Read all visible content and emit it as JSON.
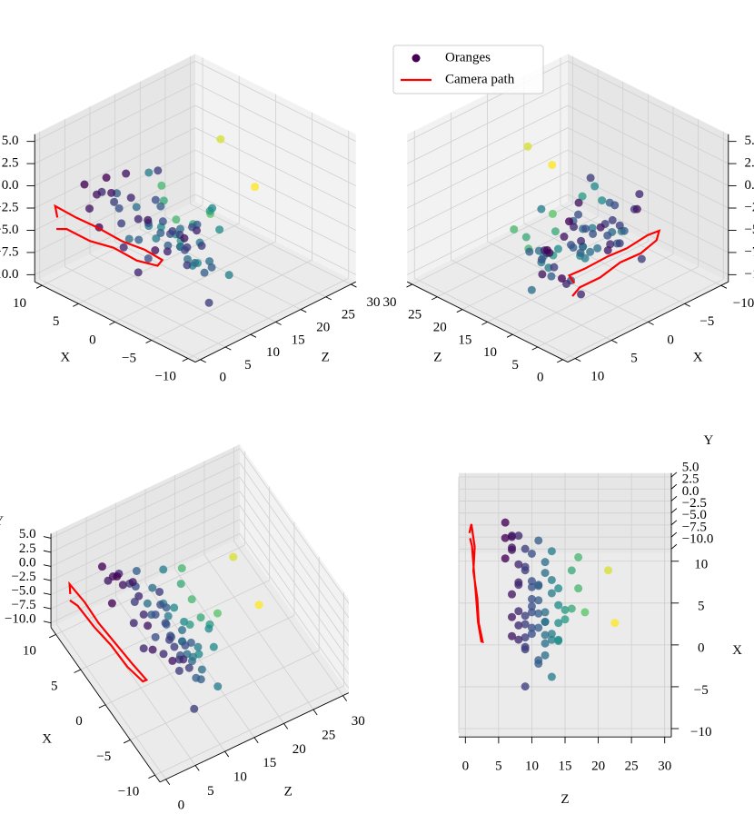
{
  "chart_data": {
    "type": "scatter3d",
    "xlabel": "X",
    "ylabel": "Y",
    "zlabel": "Z",
    "xlim": [
      -11,
      11
    ],
    "ylim": [
      -10.8,
      5.8
    ],
    "zlim": [
      -1,
      31
    ],
    "xticks": [
      {
        "value": -10,
        "label": "−10"
      },
      {
        "value": -5,
        "label": "−5"
      },
      0,
      5,
      10
    ],
    "yticks": [
      {
        "value": -10,
        "label": "−10.0"
      },
      {
        "value": -7.5,
        "label": "−7.5"
      },
      {
        "value": -5,
        "label": "−5.0"
      },
      {
        "value": -2.5,
        "label": "−2.5"
      },
      {
        "value": 0,
        "label": "0.0"
      },
      {
        "value": 2.5,
        "label": "2.5"
      },
      {
        "value": 5,
        "label": "5.0"
      }
    ],
    "zticks": [
      0,
      5,
      10,
      15,
      20,
      25,
      30
    ],
    "grid": true,
    "legend": "upper center",
    "series": [
      {
        "name": "Oranges",
        "kind": "scatter",
        "color": "#440154",
        "colormap": "viridis",
        "x": [
          8,
          6,
          5,
          3,
          2,
          0,
          -1,
          -3,
          -4,
          -5,
          7,
          4,
          1,
          -2,
          -6,
          9,
          5,
          2,
          -1,
          -4,
          6,
          3,
          0,
          -3,
          8,
          4,
          1,
          -2,
          -5,
          7,
          2,
          -1,
          -4,
          5,
          0,
          -3,
          6,
          3,
          -2,
          1,
          9,
          7,
          -6,
          4,
          0,
          -5,
          2,
          8,
          -1,
          3,
          -4,
          6,
          1,
          -2,
          5,
          -3,
          0,
          4,
          7,
          -1,
          5,
          4,
          -2,
          1,
          6,
          -3,
          2,
          0,
          -3,
          1
        ],
        "y": [
          -2,
          -5,
          -7,
          -3,
          -1,
          -6,
          -8,
          -4,
          -2,
          -6,
          -5,
          -1,
          -3,
          -7,
          -9,
          -4,
          -6,
          -2,
          -5,
          -3,
          1,
          -8,
          -4,
          -6,
          -3,
          -7,
          -2,
          -5,
          -1,
          -8,
          -6,
          -3,
          -7,
          0,
          -5,
          -2,
          -4,
          -9,
          -3,
          -6,
          -1,
          -4,
          -7,
          2,
          -6,
          -3,
          -5,
          -2,
          -8,
          -4,
          -6,
          -1,
          3,
          -5,
          -7,
          -2,
          -4,
          -6,
          -3,
          -7,
          -4,
          -6,
          -2,
          -5,
          -3,
          -1,
          -7,
          -4,
          -1,
          3
        ],
        "z": [
          7,
          9,
          11,
          8,
          10,
          12,
          13,
          9,
          7,
          11,
          6,
          8,
          10,
          12,
          9,
          7,
          13,
          11,
          8,
          14,
          6,
          10,
          12,
          9,
          11,
          13,
          7,
          10,
          8,
          12,
          14,
          9,
          11,
          13,
          7,
          10,
          12,
          8,
          9,
          11,
          6,
          10,
          13,
          7,
          12,
          9,
          11,
          8,
          14,
          10,
          12,
          7,
          9,
          13,
          8,
          11,
          10,
          14,
          9,
          12,
          16,
          17,
          15,
          16,
          17,
          14,
          15,
          18,
          22.5,
          21.5
        ]
      },
      {
        "name": "Camera path",
        "kind": "line",
        "color": "#ff0000",
        "x": [
          9,
          9.5,
          7,
          4,
          1,
          -2,
          -4,
          -3.5,
          -1,
          2,
          5,
          8,
          9.2
        ],
        "y": [
          -3.2,
          -2.2,
          -2.6,
          -2.4,
          -2.9,
          -2.7,
          -3.2,
          -4.0,
          -4.3,
          -4.0,
          -4.4,
          -4.2,
          -4.6
        ],
        "z": [
          0.6,
          0.9,
          1.4,
          1.2,
          1.8,
          2.0,
          2.6,
          2.4,
          1.9,
          1.6,
          1.3,
          1.0,
          0.7
        ]
      }
    ]
  }
}
